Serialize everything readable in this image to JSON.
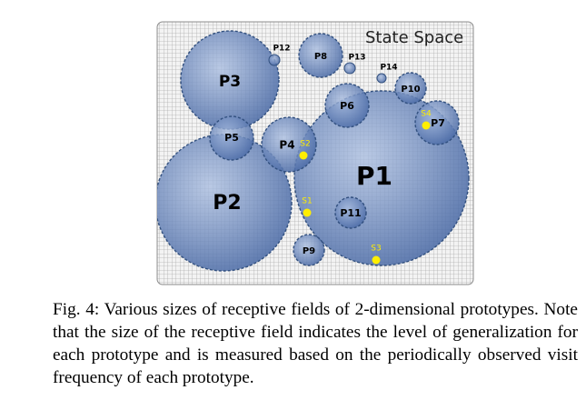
{
  "state_space": {
    "title": "State Space"
  },
  "prototypes": [
    {
      "id": "P1",
      "label": "P1"
    },
    {
      "id": "P2",
      "label": "P2"
    },
    {
      "id": "P3",
      "label": "P3"
    },
    {
      "id": "P4",
      "label": "P4"
    },
    {
      "id": "P5",
      "label": "P5"
    },
    {
      "id": "P6",
      "label": "P6"
    },
    {
      "id": "P7",
      "label": "P7"
    },
    {
      "id": "P8",
      "label": "P8"
    },
    {
      "id": "P9",
      "label": "P9"
    },
    {
      "id": "P10",
      "label": "P10"
    },
    {
      "id": "P11",
      "label": "P11"
    },
    {
      "id": "P12",
      "label": "P12"
    },
    {
      "id": "P13",
      "label": "P13"
    },
    {
      "id": "P14",
      "label": "P14"
    }
  ],
  "samples": [
    {
      "id": "S1",
      "label": "S1"
    },
    {
      "id": "S2",
      "label": "S2"
    },
    {
      "id": "S3",
      "label": "S3"
    },
    {
      "id": "S4",
      "label": "S4"
    }
  ],
  "colors": {
    "grid_background": "#f3f3f3",
    "grid_line": "#9a9a9a",
    "field_fill_center": "#a9bde0",
    "field_fill_edge": "#4a6aa6",
    "field_stroke": "#32507f",
    "sample_point": "#ffee00"
  },
  "caption": {
    "label": "Fig. 4:",
    "text": "Various sizes of receptive fields of 2-dimensional prototypes. Note that the size of the receptive field indicates the level of generalization for each prototype and is measured based on the periodically observed visit frequency of each prototype."
  }
}
